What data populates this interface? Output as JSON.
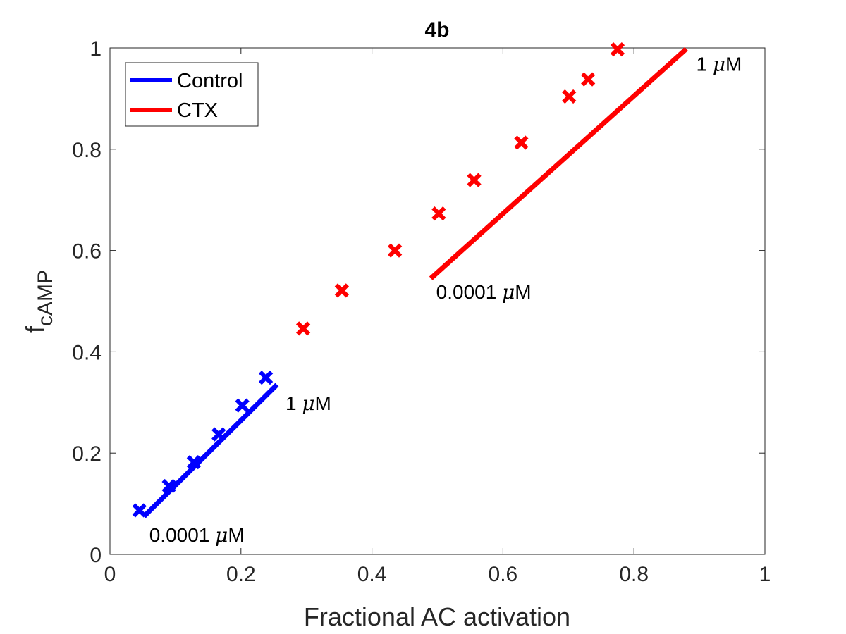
{
  "chart_data": {
    "type": "scatter",
    "title": "4b",
    "xlabel": "Fractional AC activation",
    "ylabel_main": "f",
    "ylabel_sub": "cAMP",
    "xlim": [
      0,
      1
    ],
    "ylim": [
      0,
      1
    ],
    "xticks": [
      0,
      0.2,
      0.4,
      0.6,
      0.8,
      1
    ],
    "yticks": [
      0,
      0.2,
      0.4,
      0.6,
      0.8,
      1
    ],
    "xtick_labels": [
      "0",
      "0.2",
      "0.4",
      "0.6",
      "0.8",
      "1"
    ],
    "ytick_labels": [
      "0",
      "0.2",
      "0.4",
      "0.6",
      "0.8",
      "1"
    ],
    "grid": false,
    "legend_position": "top-left",
    "legend": [
      {
        "label": "Control",
        "color": "#0000ff"
      },
      {
        "label": "CTX",
        "color": "#ff0000"
      }
    ],
    "series": [
      {
        "name": "Control",
        "color": "#0000ff",
        "line": {
          "x": [
            0.052,
            0.255
          ],
          "y": [
            0.075,
            0.335
          ]
        },
        "points": {
          "x": [
            0.045,
            0.09,
            0.128,
            0.166,
            0.202,
            0.238
          ],
          "y": [
            0.087,
            0.135,
            0.182,
            0.237,
            0.294,
            0.349
          ]
        }
      },
      {
        "name": "CTX",
        "color": "#ff0000",
        "line": {
          "x": [
            0.49,
            0.88
          ],
          "y": [
            0.545,
            0.998
          ]
        },
        "points": {
          "x": [
            0.295,
            0.354,
            0.435,
            0.502,
            0.556,
            0.628,
            0.701,
            0.73,
            0.775
          ],
          "y": [
            0.446,
            0.521,
            0.6,
            0.673,
            0.739,
            0.813,
            0.904,
            0.938,
            0.997
          ]
        }
      }
    ],
    "annotations": [
      {
        "prefix": "0.0001 ",
        "mu": "μ",
        "suffix": "M",
        "x": 0.06,
        "y": 0.025
      },
      {
        "prefix": "1 ",
        "mu": "μ",
        "suffix": "M",
        "x": 0.268,
        "y": 0.285
      },
      {
        "prefix": "0.0001 ",
        "mu": "μ",
        "suffix": "M",
        "x": 0.498,
        "y": 0.505
      },
      {
        "prefix": "1 ",
        "mu": "μ",
        "suffix": "M",
        "x": 0.895,
        "y": 0.955
      }
    ]
  }
}
